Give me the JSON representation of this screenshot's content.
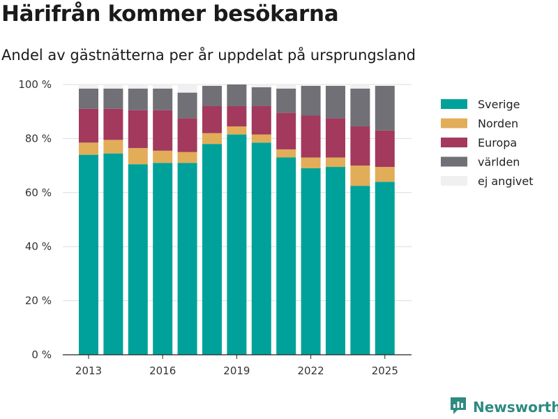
{
  "title": "Härifrån kommer besökarna",
  "subtitle": "Andel av gästnätterna per år uppdelat på ursprungsland",
  "brand": {
    "name": "Newsworthy",
    "icon": "newsworthy-logo-icon",
    "color": "#2f8a80"
  },
  "chart_data": {
    "type": "bar",
    "stacked": true,
    "title": "Härifrån kommer besökarna",
    "subtitle": "Andel av gästnätterna per år uppdelat på ursprungsland",
    "xlabel": "",
    "ylabel": "",
    "x": [
      2013,
      2014,
      2015,
      2016,
      2017,
      2018,
      2019,
      2020,
      2021,
      2022,
      2023,
      2024,
      2025
    ],
    "x_tick_labels": [
      "2013",
      "2016",
      "2019",
      "2022",
      "2025"
    ],
    "y_ticks": [
      0,
      20,
      40,
      60,
      80,
      100
    ],
    "y_tick_labels": [
      "0 %",
      "20 %",
      "40 %",
      "60 %",
      "80 %",
      "100 %"
    ],
    "ylim": [
      0,
      100
    ],
    "grid": true,
    "legend_position": "right",
    "series": [
      {
        "name": "Sverige",
        "color": "#00a19a",
        "values": [
          74,
          74.5,
          70.5,
          71,
          71,
          78,
          81.5,
          78.5,
          73,
          69,
          69.5,
          62.5,
          64
        ]
      },
      {
        "name": "Norden",
        "color": "#e1ad58",
        "values": [
          4.5,
          5,
          6,
          4.5,
          4,
          4,
          3,
          3,
          3,
          4,
          3.5,
          7.5,
          5.5
        ]
      },
      {
        "name": "Europa",
        "color": "#a3395d",
        "values": [
          12.5,
          11.5,
          14,
          15,
          12.5,
          10,
          7.5,
          10.5,
          13.5,
          15.5,
          14.5,
          14.5,
          13.5
        ]
      },
      {
        "name": "världen",
        "color": "#707076",
        "values": [
          7.5,
          7.5,
          8,
          8,
          9.5,
          7.5,
          8,
          7,
          9,
          11,
          12,
          14,
          16.5
        ]
      },
      {
        "name": "ej angivet",
        "color": "#f0f0f0",
        "values": [
          1.5,
          1.5,
          1.5,
          1.5,
          3,
          0.5,
          0,
          1,
          1.5,
          0.5,
          0.5,
          1.5,
          0.5
        ]
      }
    ]
  }
}
